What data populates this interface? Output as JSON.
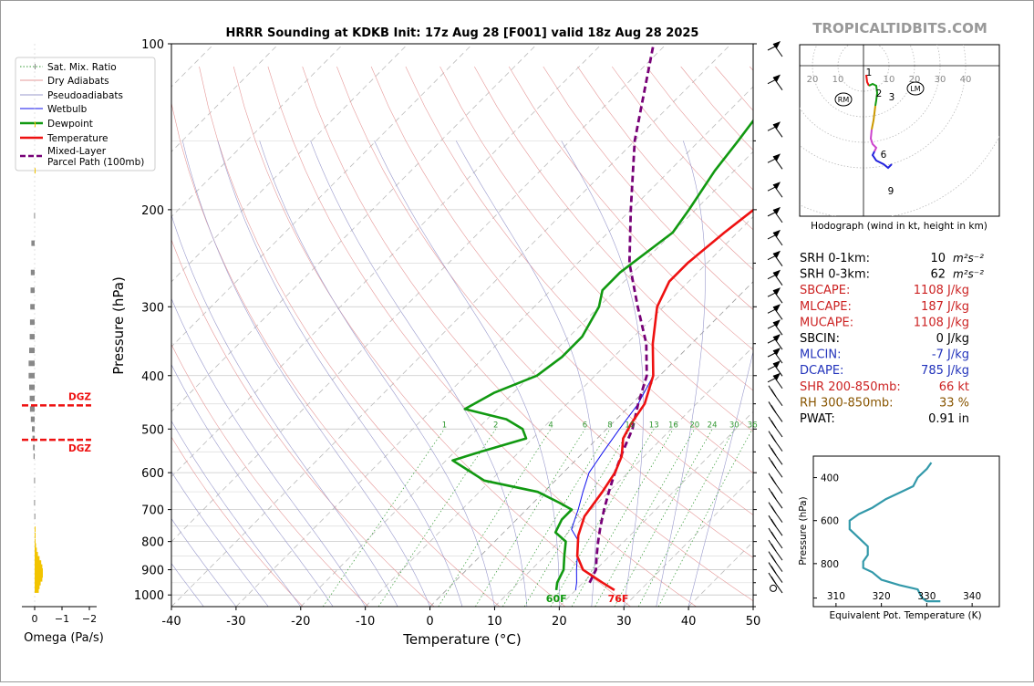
{
  "title": "HRRR Sounding at KDKB Init: 17z Aug 28 [F001] valid 18z Aug 28 2025",
  "brand": "TROPICALTIDBITS.COM",
  "colors": {
    "temperature": "#ee1111",
    "dewpoint": "#119911",
    "wetbulb": "#1111ee",
    "parcel": "#770077",
    "dgz": "#ee1111",
    "theta_e": "#3399aa",
    "omega_up": "#f2c400",
    "omega_down": "#888888",
    "red_param": "#cc2222",
    "blue_param": "#2233bb",
    "brown_param": "#885500"
  },
  "chart_data": [
    {
      "type": "line",
      "name": "skew-t",
      "xlabel": "Temperature (°C)",
      "ylabel": "Pressure (hPa)",
      "xlim": [
        -40,
        50
      ],
      "ylim": [
        1050,
        100
      ],
      "y_scale": "log",
      "xticks": [
        -40,
        -30,
        -20,
        -10,
        0,
        10,
        20,
        30,
        40,
        50
      ],
      "yticks": [
        100,
        200,
        300,
        400,
        500,
        600,
        700,
        800,
        900,
        1000
      ],
      "mixing_ratio_labels": [
        "1",
        "2",
        "4",
        "6",
        "8",
        "10",
        "13",
        "16",
        "20",
        "24",
        "30",
        "36"
      ],
      "legend": {
        "position": "outside-left",
        "entries": [
          "Sat. Mix. Ratio",
          "Dry Adiabats",
          "Pseudoadiabats",
          "Wetbulb",
          "Dewpoint",
          "Temperature",
          "Mixed-Layer\nParcel Path (100mb)"
        ]
      },
      "series": [
        {
          "name": "Temperature",
          "points": [
            [
              26,
              980
            ],
            [
              23,
              950
            ],
            [
              18,
              900
            ],
            [
              15,
              850
            ],
            [
              12,
              780
            ],
            [
              10,
              720
            ],
            [
              9,
              650
            ],
            [
              8,
              600
            ],
            [
              6.5,
              560
            ],
            [
              4,
              520
            ],
            [
              3,
              490
            ],
            [
              2,
              450
            ],
            [
              -1,
              400
            ],
            [
              -6,
              350
            ],
            [
              -11,
              300
            ],
            [
              -13,
              270
            ],
            [
              -13,
              250
            ],
            [
              -12,
              220
            ],
            [
              -11,
              200
            ],
            [
              -8,
              170
            ],
            [
              -8,
              150
            ],
            [
              -7,
              120
            ],
            [
              -3,
              100
            ]
          ]
        },
        {
          "name": "Dewpoint",
          "points": [
            [
              17,
              980
            ],
            [
              16,
              950
            ],
            [
              15,
              900
            ],
            [
              13,
              850
            ],
            [
              11,
              800
            ],
            [
              8,
              770
            ],
            [
              7,
              730
            ],
            [
              7,
              700
            ],
            [
              4,
              680
            ],
            [
              -1,
              650
            ],
            [
              -11,
              620
            ],
            [
              -19,
              570
            ],
            [
              -16,
              550
            ],
            [
              -11,
              520
            ],
            [
              -13,
              500
            ],
            [
              -17,
              480
            ],
            [
              -25,
              460
            ],
            [
              -23,
              430
            ],
            [
              -19,
              400
            ],
            [
              -18,
              370
            ],
            [
              -18,
              340
            ],
            [
              -20,
              300
            ],
            [
              -22,
              280
            ],
            [
              -22,
              260
            ],
            [
              -20,
              220
            ],
            [
              -21,
              200
            ],
            [
              -23,
              170
            ],
            [
              -24,
              150
            ],
            [
              -26,
              120
            ],
            [
              -22,
              100
            ]
          ]
        },
        {
          "name": "Wetbulb",
          "points": [
            [
              20,
              980
            ],
            [
              19,
              950
            ],
            [
              17,
              900
            ],
            [
              15,
              850
            ],
            [
              13,
              800
            ],
            [
              10,
              760
            ],
            [
              9,
              730
            ],
            [
              8,
              700
            ],
            [
              6,
              650
            ],
            [
              4,
              600
            ],
            [
              3,
              550
            ],
            [
              2,
              500
            ],
            [
              1,
              450
            ],
            [
              -1,
              400
            ],
            [
              -6,
              350
            ],
            [
              -11,
              300
            ]
          ]
        },
        {
          "name": "Mixed-Layer Parcel Path (100mb)",
          "points": [
            [
              21,
              950
            ],
            [
              20,
              900
            ],
            [
              18,
              850
            ],
            [
              16,
              800
            ],
            [
              14,
              750
            ],
            [
              12,
              700
            ],
            [
              10,
              650
            ],
            [
              8,
              600
            ],
            [
              6,
              550
            ],
            [
              4,
              500
            ],
            [
              1,
              450
            ],
            [
              -2,
              400
            ],
            [
              -7,
              350
            ],
            [
              -14,
              300
            ],
            [
              -22,
              250
            ],
            [
              -30,
              200
            ],
            [
              -40,
              150
            ],
            [
              -52,
              100
            ]
          ]
        }
      ],
      "surface_labels": {
        "temperature": "76F",
        "dewpoint": "60F"
      }
    },
    {
      "type": "bar",
      "name": "omega",
      "xlabel": "Omega (Pa/s)",
      "xticks": [
        "0",
        "−1",
        "−2"
      ],
      "dgz_label": "DGZ",
      "dgz_levels_hpa": [
        453,
        523
      ],
      "values": [
        [
          980,
          -0.15
        ],
        [
          965,
          -0.18
        ],
        [
          950,
          -0.22
        ],
        [
          935,
          -0.28
        ],
        [
          920,
          -0.3
        ],
        [
          905,
          -0.3
        ],
        [
          890,
          -0.28
        ],
        [
          875,
          -0.24
        ],
        [
          860,
          -0.18
        ],
        [
          845,
          -0.12
        ],
        [
          830,
          -0.08
        ],
        [
          815,
          -0.05
        ],
        [
          800,
          -0.03
        ],
        [
          780,
          -0.02
        ],
        [
          760,
          -0.01
        ],
        [
          720,
          0.01
        ],
        [
          680,
          0.02
        ],
        [
          620,
          0.02
        ],
        [
          560,
          0.04
        ],
        [
          540,
          0.06
        ],
        [
          520,
          0.08
        ],
        [
          500,
          0.1
        ],
        [
          480,
          0.14
        ],
        [
          460,
          0.17
        ],
        [
          440,
          0.18
        ],
        [
          420,
          0.2
        ],
        [
          400,
          0.22
        ],
        [
          380,
          0.22
        ],
        [
          360,
          0.2
        ],
        [
          340,
          0.18
        ],
        [
          320,
          0.17
        ],
        [
          300,
          0.16
        ],
        [
          280,
          0.15
        ],
        [
          260,
          0.14
        ],
        [
          230,
          0.12
        ],
        [
          205,
          0.02
        ],
        [
          170,
          -0.02
        ],
        [
          140,
          -0.01
        ],
        [
          110,
          0.0
        ]
      ]
    },
    {
      "type": "line",
      "name": "hodograph",
      "xlabel": "Hodograph (wind in kt, height in km)",
      "xtick_labels": [
        "20",
        "10",
        "10",
        "20",
        "30",
        "40"
      ],
      "ring_labels_kt": [
        10,
        20,
        30,
        40
      ],
      "height_labels": [
        "1",
        "2",
        "3",
        "6",
        "9"
      ],
      "markers": [
        "RM",
        "LM"
      ],
      "segments": [
        {
          "range_km": "0-1",
          "color": "#ee1111",
          "points": [
            [
              3,
              -10
            ],
            [
              4,
              -18
            ],
            [
              6,
              -22
            ]
          ]
        },
        {
          "range_km": "1-3",
          "color": "#119911",
          "points": [
            [
              6,
              -22
            ],
            [
              10,
              -20
            ],
            [
              14,
              -22
            ],
            [
              15,
              -30
            ],
            [
              14,
              -38
            ],
            [
              13,
              -44
            ]
          ]
        },
        {
          "range_km": "3-6",
          "color": "#cc9900",
          "points": [
            [
              13,
              -44
            ],
            [
              12,
              -52
            ],
            [
              11,
              -60
            ],
            [
              9,
              -70
            ]
          ]
        },
        {
          "range_km": "6-9",
          "color": "#cc44cc",
          "points": [
            [
              9,
              -70
            ],
            [
              8,
              -80
            ],
            [
              10,
              -86
            ],
            [
              14,
              -90
            ],
            [
              12,
              -94
            ]
          ]
        },
        {
          "range_km": "9-12",
          "color": "#2222dd",
          "points": [
            [
              12,
              -94
            ],
            [
              10,
              -98
            ],
            [
              14,
              -104
            ],
            [
              22,
              -108
            ],
            [
              27,
              -112
            ],
            [
              31,
              -108
            ]
          ]
        }
      ]
    },
    {
      "type": "line",
      "name": "theta-e",
      "xlabel": "Equivalent Pot. Temperature (K)",
      "ylabel": "Pressure (hPa)",
      "xlim": [
        305,
        346
      ],
      "ylim": [
        1000,
        300
      ],
      "xticks": [
        310,
        320,
        330,
        340
      ],
      "yticks": [
        400,
        600,
        800
      ],
      "points": [
        [
          333,
          975
        ],
        [
          330,
          975
        ],
        [
          329,
          960
        ],
        [
          328,
          920
        ],
        [
          324,
          900
        ],
        [
          320,
          875
        ],
        [
          318,
          840
        ],
        [
          316,
          820
        ],
        [
          316,
          790
        ],
        [
          317,
          760
        ],
        [
          317,
          720
        ],
        [
          315,
          680
        ],
        [
          313,
          640
        ],
        [
          313,
          600
        ],
        [
          315,
          570
        ],
        [
          318,
          540
        ],
        [
          321,
          500
        ],
        [
          324,
          470
        ],
        [
          327,
          440
        ],
        [
          328,
          400
        ],
        [
          330,
          360
        ],
        [
          331,
          330
        ]
      ]
    }
  ],
  "params": [
    {
      "label": "SRH 0-1km:",
      "value": "10",
      "unit": "m²s⁻²",
      "color": "#000000"
    },
    {
      "label": "SRH 0-3km:",
      "value": "62",
      "unit": "m²s⁻²",
      "color": "#000000"
    },
    {
      "label": "SBCAPE:",
      "value": "1108 J/kg",
      "unit": "",
      "color": "#cc2222"
    },
    {
      "label": "MLCAPE:",
      "value": "187 J/kg",
      "unit": "",
      "color": "#cc2222"
    },
    {
      "label": "MUCAPE:",
      "value": "1108 J/kg",
      "unit": "",
      "color": "#cc2222"
    },
    {
      "label": "SBCIN:",
      "value": "0 J/kg",
      "unit": "",
      "color": "#000000"
    },
    {
      "label": "MLCIN:",
      "value": "-7 J/kg",
      "unit": "",
      "color": "#2233bb"
    },
    {
      "label": "DCAPE:",
      "value": "785 J/kg",
      "unit": "",
      "color": "#2233bb"
    },
    {
      "label": "SHR 200-850mb:",
      "value": "66 kt",
      "unit": "",
      "color": "#cc2222"
    },
    {
      "label": "RH 300-850mb:",
      "value": "33 %",
      "unit": "",
      "color": "#885500"
    },
    {
      "label": "PWAT:",
      "value": "0.91 in",
      "unit": "",
      "color": "#000000"
    }
  ]
}
